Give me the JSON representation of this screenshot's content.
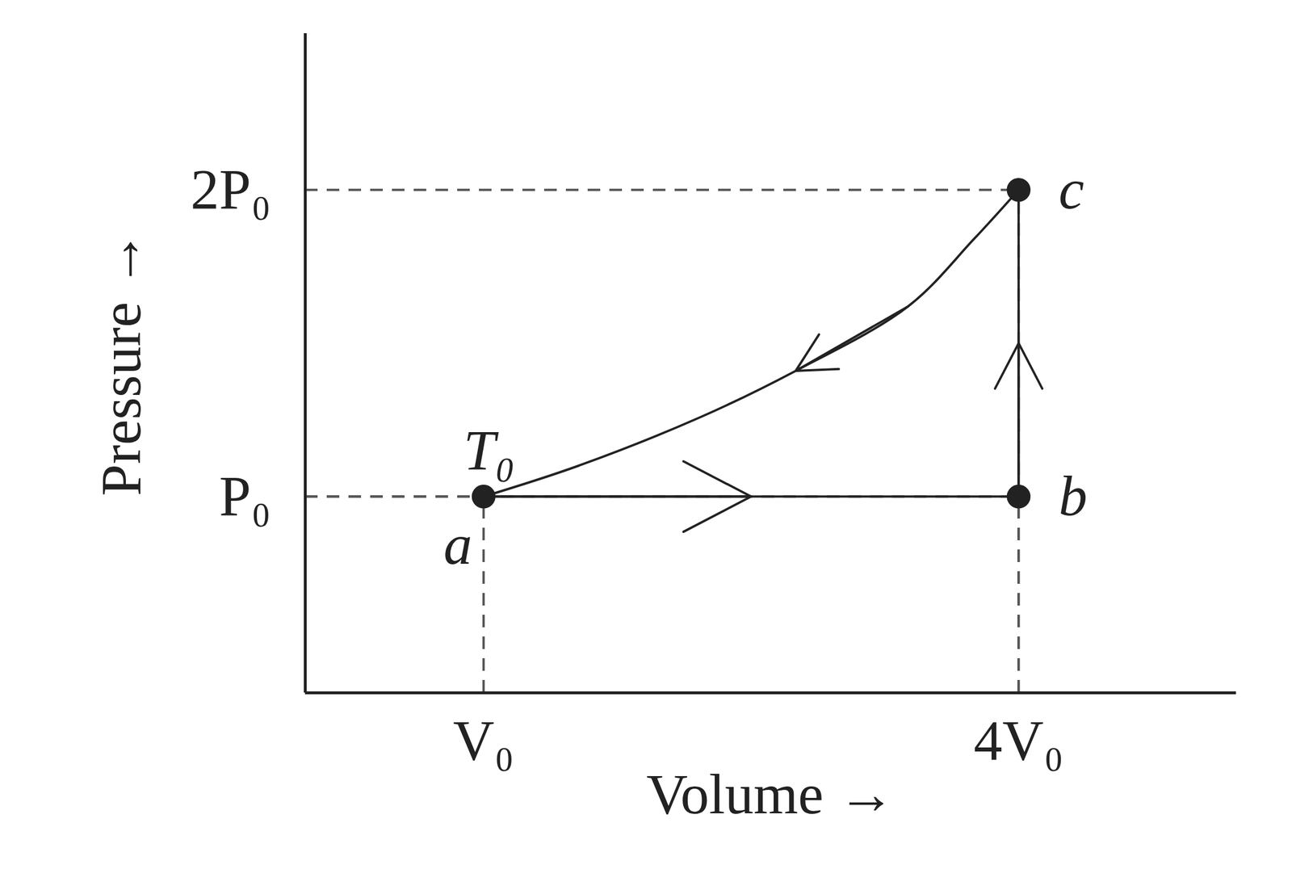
{
  "chart_data": {
    "type": "line",
    "xlabel": "Volume →",
    "ylabel": "Pressure →",
    "x": [
      1,
      4,
      4,
      3.75,
      3.38,
      2.75,
      2.22,
      1.53,
      1
    ],
    "values": [
      1,
      1,
      2,
      1.84,
      1.62,
      1.41,
      1.26,
      1.1,
      1
    ],
    "xlim": [
      0,
      5.22
    ],
    "ylim": [
      0.36,
      2.51
    ],
    "xticks": [
      {
        "value": 1,
        "label": "V₀"
      },
      {
        "value": 4,
        "label": "4V₀"
      }
    ],
    "yticks": [
      {
        "value": 1,
        "label": "P₀"
      },
      {
        "value": 2,
        "label": "2P₀"
      }
    ],
    "points": [
      {
        "label": "a",
        "x": 1,
        "y": 1
      },
      {
        "label": "b",
        "x": 4,
        "y": 1
      },
      {
        "label": "c",
        "x": 4,
        "y": 2
      }
    ],
    "annotations": [
      {
        "text": "T₀",
        "x": 1,
        "y": 1
      }
    ],
    "color": "#222222",
    "marker": "circle",
    "line_style": "solid",
    "grid": false
  }
}
